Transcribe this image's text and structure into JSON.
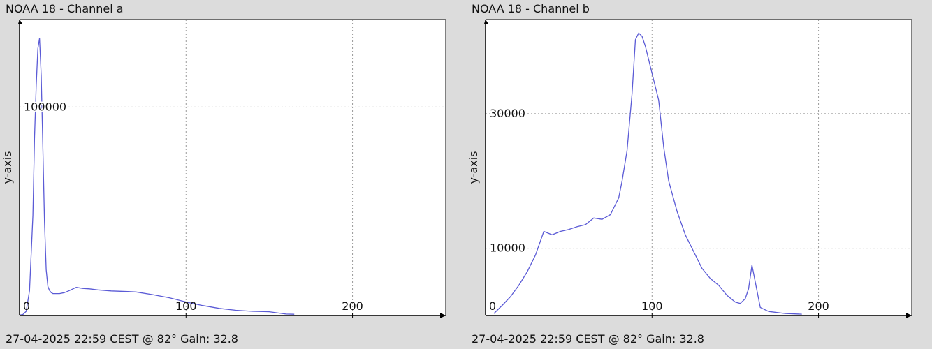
{
  "charts": {
    "a": {
      "title": "NOAA 18 - Channel a",
      "footer": "27-04-2025 22:59 CEST @ 82° Gain: 32.8"
    },
    "b": {
      "title": "NOAA 18 - Channel b",
      "footer": "27-04-2025 22:59 CEST @ 82° Gain: 32.8"
    }
  },
  "colors": {
    "background": "#dcdcdc",
    "plot_bg": "#ffffff",
    "line": "#5b5bd6",
    "grid": "#9a9a9a",
    "axis": "#000000"
  },
  "chart_data": [
    {
      "type": "line",
      "title": "NOAA 18 - Channel a",
      "xlabel": "",
      "ylabel": "y-axis",
      "xlim": [
        0,
        256
      ],
      "ylim": [
        0,
        142000
      ],
      "xticks": [
        0,
        100,
        200
      ],
      "yticks": [
        100000
      ],
      "grid": true,
      "series": [
        {
          "x": [
            0,
            2,
            4,
            6,
            8,
            9,
            10,
            11,
            12,
            13,
            14,
            15,
            16,
            17,
            18,
            19,
            20,
            22,
            24,
            27,
            30,
            34,
            38,
            42,
            47,
            55,
            65,
            70,
            80,
            90,
            100,
            110,
            120,
            130,
            140,
            150,
            160,
            165
          ],
          "y": [
            200,
            500,
            2000,
            12000,
            48000,
            85000,
            110000,
            128000,
            133000,
            115000,
            80000,
            45000,
            22000,
            14000,
            12000,
            11000,
            10500,
            10500,
            10500,
            11000,
            12000,
            13500,
            13000,
            12800,
            12300,
            11800,
            11500,
            11300,
            10000,
            8500,
            6500,
            4800,
            3400,
            2500,
            2000,
            1800,
            700,
            600
          ]
        }
      ]
    },
    {
      "type": "line",
      "title": "NOAA 18 - Channel b",
      "xlabel": "",
      "ylabel": "y-axis",
      "xlim": [
        0,
        256
      ],
      "ylim": [
        0,
        44000
      ],
      "xticks": [
        0,
        100,
        200
      ],
      "yticks": [
        10000,
        30000
      ],
      "grid": true,
      "series": [
        {
          "x": [
            5,
            10,
            15,
            20,
            25,
            30,
            35,
            40,
            45,
            50,
            55,
            60,
            65,
            70,
            75,
            80,
            82,
            85,
            88,
            90,
            92,
            94,
            96,
            100,
            104,
            107,
            110,
            115,
            120,
            125,
            130,
            135,
            140,
            145,
            150,
            153,
            156,
            158,
            160,
            162,
            165,
            170,
            180,
            190
          ],
          "y": [
            300,
            1500,
            2800,
            4500,
            6500,
            9000,
            12500,
            12000,
            12500,
            12800,
            13200,
            13500,
            14500,
            14300,
            15000,
            17500,
            20000,
            24500,
            33000,
            41000,
            42000,
            41500,
            40000,
            36000,
            32000,
            25000,
            20000,
            15500,
            12000,
            9500,
            7000,
            5500,
            4500,
            3000,
            2000,
            1800,
            2500,
            4000,
            7500,
            5000,
            1200,
            600,
            300,
            200
          ]
        }
      ]
    }
  ]
}
